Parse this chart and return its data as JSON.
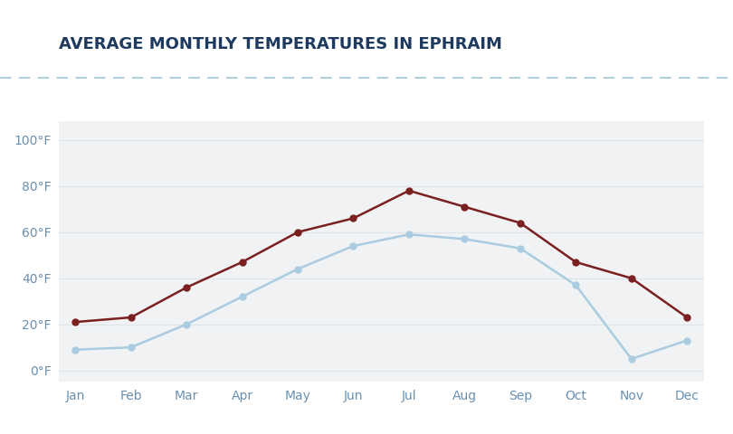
{
  "title": "AVERAGE MONTHLY TEMPERATURES IN EPHRAIM",
  "months": [
    "Jan",
    "Feb",
    "Mar",
    "Apr",
    "May",
    "Jun",
    "Jul",
    "Aug",
    "Sep",
    "Oct",
    "Nov",
    "Dec"
  ],
  "avg_low": [
    9,
    10,
    20,
    32,
    44,
    54,
    59,
    57,
    53,
    37,
    5,
    13
  ],
  "avg_high": [
    21,
    23,
    36,
    47,
    60,
    66,
    78,
    71,
    64,
    47,
    40,
    23
  ],
  "low_color": "#aacce0",
  "high_color": "#7a2020",
  "fig_bg_color": "#ffffff",
  "plot_bg_color": "#f0f2f4",
  "title_color": "#1e3a5f",
  "axis_label_color": "#6a90b0",
  "grid_color": "#dde4ea",
  "dashed_line_color": "#b0d0e0",
  "ylim": [
    -5,
    108
  ],
  "yticks": [
    0,
    20,
    40,
    60,
    80,
    100
  ],
  "ytick_labels": [
    "0°F",
    "20°F",
    "40°F",
    "60°F",
    "80°F",
    "100°F"
  ],
  "title_fontsize": 13,
  "axis_fontsize": 10,
  "legend_fontsize": 10
}
